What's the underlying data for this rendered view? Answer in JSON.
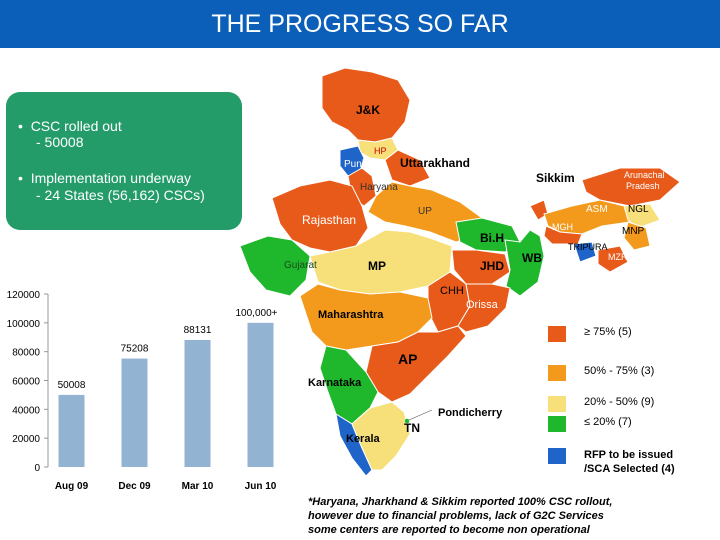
{
  "title": "THE PROGRESS SO FAR",
  "summary": {
    "bullet1": "CSC rolled out",
    "bullet1_value": "- 50008",
    "bullet2": "Implementation underway",
    "bullet2_value": "- 24 States (56,162) CSCs)"
  },
  "map_labels": {
    "jk": "J&K",
    "hp": "HP",
    "punjab": "Punjab",
    "uttarakhand": "Uttarakhand",
    "haryana": "Haryana",
    "sikkim": "Sikkim",
    "arunachal_1": "Arunachal",
    "arunachal_2": "Pradesh",
    "rajasthan": "Rajasthan",
    "up": "UP",
    "asm": "ASM",
    "ngl": "NGL",
    "mgh": "MGH",
    "bih": "Bi.H",
    "mnp": "MNP",
    "tripura": "TRIPURA",
    "gujarat": "Gujarat",
    "mp": "MP",
    "jhd": "JHD",
    "wb": "WB",
    "mzr": "MZR",
    "chh": "CHH",
    "orissa": "Orissa",
    "maharashtra": "Maharashtra",
    "ap": "AP",
    "karnataka": "Karnataka",
    "pondicherry": "Pondicherry",
    "kerala": "Kerala",
    "tn": "TN"
  },
  "legend": [
    {
      "label": "≥ 75% (5)",
      "color": "#e85a1a"
    },
    {
      "label": "50% - 75% (3)",
      "color": "#f39a1d"
    },
    {
      "label": "20% - 50% (9)",
      "color": "#f7e07a"
    },
    {
      "label": "≤ 20% (7)",
      "color": "#1fb72c"
    },
    {
      "label": "RFP to be issued",
      "label2": "/SCA Selected (4)",
      "color": "#1f64c8"
    }
  ],
  "chart_data": {
    "type": "bar",
    "categories": [
      "Aug 09",
      "Dec 09",
      "Mar 10",
      "Jun 10"
    ],
    "values": [
      50008,
      75208,
      88131,
      100000
    ],
    "data_labels": [
      "50008",
      "75208",
      "88131",
      "100,000+"
    ],
    "ylim": [
      0,
      120000
    ],
    "yticks": [
      0,
      20000,
      40000,
      60000,
      80000,
      100000,
      120000
    ],
    "bar_color": "#93b3d3",
    "grid": false
  },
  "footnote": [
    "*Haryana, Jharkhand & Sikkim reported 100% CSC rollout,",
    "however due to  financial problems, lack of G2C Services",
    " some centers are reported to become non operational"
  ]
}
